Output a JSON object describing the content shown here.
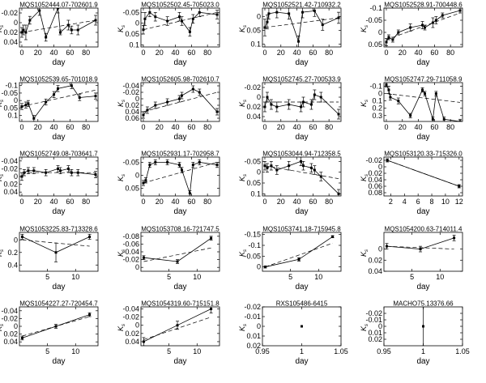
{
  "figure": {
    "background": "#ffffff",
    "line_color": "#000000",
    "default_ylabel": "K",
    "default_ylabel_sub": "s",
    "default_xlabel": "day"
  },
  "chart_data": [
    {
      "type": "line",
      "title": "MQS1052444.07-702601.9",
      "ylim": [
        -0.03,
        0.05
      ],
      "xlim": [
        -3,
        95
      ],
      "yticks": [
        "-0.02",
        "0",
        "0.02",
        "0.04"
      ],
      "ytick_values": [
        -0.02,
        0,
        0.02,
        0.04
      ],
      "xticks": [
        "0",
        "20",
        "40",
        "60",
        "80"
      ],
      "xtick_values": [
        0,
        20,
        40,
        60,
        80
      ],
      "x": [
        0,
        2,
        5,
        10,
        22,
        30,
        45,
        48,
        58,
        62,
        70,
        92
      ],
      "y": [
        0.02,
        0.015,
        0.02,
        -0.005,
        -0.025,
        0.03,
        -0.03,
        0.02,
        0.005,
        0.015,
        0.015,
        -0.005
      ],
      "errors": [
        0.01,
        0.01,
        0.015,
        0.008,
        0.01,
        0.008,
        0.01,
        0.005,
        0.01,
        0.008,
        0.01,
        0.01
      ],
      "trend": [
        [
          0,
          0.02
        ],
        [
          92,
          -0.005
        ]
      ]
    },
    {
      "type": "line",
      "title": "MQS1052502.45-705023.0",
      "ylim": [
        -0.07,
        0.11
      ],
      "xlim": [
        -3,
        95
      ],
      "yticks": [
        "-0.05",
        "0",
        "0.05",
        "0.1"
      ],
      "ytick_values": [
        -0.05,
        0,
        0.05,
        0.1
      ],
      "xticks": [
        "0",
        "20",
        "40",
        "60",
        "80"
      ],
      "xtick_values": [
        0,
        20,
        40,
        60,
        80
      ],
      "x": [
        0,
        2,
        8,
        15,
        30,
        45,
        48,
        58,
        62,
        70,
        92
      ],
      "y": [
        0.03,
        -0.02,
        -0.05,
        -0.03,
        -0.01,
        -0.03,
        -0.01,
        0.04,
        -0.02,
        -0.05,
        -0.04
      ],
      "errors": [
        0.02,
        0.03,
        0.02,
        0.02,
        0.02,
        0.02,
        0.02,
        0.02,
        0.02,
        0.02,
        0.02
      ],
      "trend": [
        [
          0,
          0.03
        ],
        [
          92,
          -0.05
        ]
      ]
    },
    {
      "type": "line",
      "title": "MQS1052521.42-710932.2",
      "ylim": [
        -0.03,
        0.11
      ],
      "xlim": [
        -3,
        95
      ],
      "yticks": [
        "0",
        "0.05",
        "0.1"
      ],
      "ytick_values": [
        0,
        0.05,
        0.1
      ],
      "xticks": [
        "0",
        "20",
        "40",
        "60",
        "80"
      ],
      "xtick_values": [
        0,
        20,
        40,
        60,
        80
      ],
      "x": [
        0,
        3,
        5,
        15,
        30,
        42,
        47,
        62,
        72,
        92
      ],
      "y": [
        0.04,
        0.02,
        -0.01,
        -0.015,
        -0.01,
        0.09,
        -0.015,
        -0.02,
        0.03,
        0.005
      ],
      "errors": [
        0.03,
        0.025,
        0.02,
        0.02,
        0.02,
        0.02,
        0.02,
        0.02,
        0.02,
        0.02
      ],
      "trend": [
        [
          0,
          0.04
        ],
        [
          92,
          0.005
        ]
      ]
    },
    {
      "type": "line",
      "title": "MQS1052528.91-700448.6",
      "ylim": [
        -0.1,
        0.06
      ],
      "xlim": [
        -3,
        95
      ],
      "yticks": [
        "-0.1",
        "-0.05",
        "0",
        "0.05"
      ],
      "ytick_values": [
        -0.1,
        -0.05,
        0,
        0.05
      ],
      "xticks": [
        "0",
        "20",
        "40",
        "60",
        "80"
      ],
      "xtick_values": [
        0,
        20,
        40,
        60,
        80
      ],
      "x": [
        0,
        3,
        8,
        15,
        30,
        45,
        48,
        58,
        62,
        70,
        92
      ],
      "y": [
        0.04,
        0.02,
        0.03,
        0.0,
        -0.02,
        -0.03,
        -0.02,
        -0.04,
        -0.05,
        -0.07,
        -0.09
      ],
      "errors": [
        0.015,
        0.01,
        0.01,
        0.01,
        0.015,
        0.015,
        0.01,
        0.02,
        0.015,
        0.01,
        0.01
      ],
      "trend": [
        [
          0,
          0.03
        ],
        [
          92,
          -0.08
        ]
      ]
    },
    {
      "type": "line",
      "title": "MQS1052539.65-701018.9",
      "ylim": [
        -0.12,
        0.14
      ],
      "xlim": [
        -3,
        95
      ],
      "yticks": [
        "-0.1",
        "-0.05",
        "0",
        "0.05",
        "0.1"
      ],
      "ytick_values": [
        -0.1,
        -0.05,
        0,
        0.05,
        0.1
      ],
      "xticks": [
        "0",
        "20",
        "40",
        "60",
        "80"
      ],
      "xtick_values": [
        0,
        20,
        40,
        60,
        80
      ],
      "x": [
        0,
        5,
        8,
        15,
        30,
        40,
        45,
        62,
        72,
        92
      ],
      "y": [
        0.04,
        0.03,
        0.02,
        0.12,
        0.01,
        -0.04,
        -0.08,
        -0.1,
        -0.02,
        -0.03
      ],
      "errors": [
        0.02,
        0.02,
        0.02,
        0.02,
        0.02,
        0.02,
        0.02,
        0.02,
        0.02,
        0.02
      ],
      "trend": [
        [
          0,
          0.04
        ],
        [
          92,
          -0.07
        ]
      ]
    },
    {
      "type": "line",
      "title": "MQS1052605.98-702610.7",
      "ylim": [
        -0.05,
        0.07
      ],
      "xlim": [
        -3,
        95
      ],
      "yticks": [
        "-0.04",
        "-0.02",
        "0",
        "0.02",
        "0.04",
        "0.06"
      ],
      "ytick_values": [
        -0.04,
        -0.02,
        0,
        0.02,
        0.04,
        0.06
      ],
      "xticks": [
        "0",
        "20",
        "40",
        "60",
        "80"
      ],
      "xtick_values": [
        0,
        20,
        40,
        60,
        80
      ],
      "x": [
        0,
        5,
        15,
        30,
        45,
        48,
        62,
        70,
        92
      ],
      "y": [
        0.05,
        0.035,
        0.02,
        0.01,
        0.0,
        -0.01,
        -0.03,
        -0.02,
        0.04
      ],
      "errors": [
        0.01,
        0.01,
        0.01,
        0.01,
        0.01,
        0.01,
        0.01,
        0.01,
        0.01
      ],
      "trend": [
        [
          0,
          0.04
        ],
        [
          92,
          -0.02
        ]
      ]
    },
    {
      "type": "line",
      "title": "MQS1052745.27-700533.9",
      "ylim": [
        -0.03,
        0.05
      ],
      "xlim": [
        -3,
        95
      ],
      "yticks": [
        "-0.02",
        "0",
        "0.02",
        "0.04"
      ],
      "ytick_values": [
        -0.02,
        0,
        0.02,
        0.04
      ],
      "xticks": [
        "0",
        "20",
        "40",
        "60",
        "80"
      ],
      "xtick_values": [
        0,
        20,
        40,
        60,
        80
      ],
      "x": [
        0,
        3,
        8,
        15,
        30,
        45,
        48,
        58,
        62,
        70,
        92
      ],
      "y": [
        0.02,
        0.0,
        0.015,
        0.02,
        0.015,
        0.02,
        0.01,
        0.015,
        -0.005,
        0.0,
        0.035
      ],
      "errors": [
        0.01,
        0.01,
        0.01,
        0.01,
        0.01,
        0.01,
        0.01,
        0.01,
        0.01,
        0.01,
        0.01
      ],
      "trend": [
        [
          0,
          0.01
        ],
        [
          92,
          0.01
        ]
      ]
    },
    {
      "type": "line",
      "title": "MQS1052747.29-711058.9",
      "ylim": [
        -0.15,
        0.38
      ],
      "xlim": [
        -3,
        95
      ],
      "yticks": [
        "-0.1",
        "0",
        "0.1",
        "0.2",
        "0.3"
      ],
      "ytick_values": [
        -0.1,
        0,
        0.1,
        0.2,
        0.3
      ],
      "xticks": [
        "0",
        "20",
        "40",
        "60",
        "80"
      ],
      "xtick_values": [
        0,
        20,
        40,
        60,
        80
      ],
      "x": [
        0,
        3,
        5,
        15,
        30,
        45,
        48,
        58,
        62,
        72,
        92
      ],
      "y": [
        -0.12,
        -0.05,
        0.05,
        0.1,
        0.3,
        -0.05,
        0.0,
        0.35,
        0.0,
        0.35,
        0.38
      ],
      "errors": [
        0.03,
        0.05,
        0.04,
        0.04,
        0.03,
        0.03,
        0.03,
        0.03,
        0.03,
        0.03,
        0.03
      ],
      "trend": [
        [
          0,
          0.0
        ],
        [
          92,
          0.12
        ]
      ]
    },
    {
      "type": "line",
      "title": "MQS1052749.08-703641.7",
      "ylim": [
        -0.05,
        0.05
      ],
      "xlim": [
        -3,
        95
      ],
      "yticks": [
        "-0.04",
        "-0.02",
        "0",
        "0.02",
        "0.04"
      ],
      "ytick_values": [
        -0.04,
        -0.02,
        0,
        0.02,
        0.04
      ],
      "xticks": [
        "0",
        "20",
        "40",
        "60",
        "80"
      ],
      "xtick_values": [
        0,
        20,
        40,
        60,
        80
      ],
      "x": [
        0,
        3,
        8,
        15,
        30,
        45,
        48,
        58,
        62,
        70,
        92
      ],
      "y": [
        0.0,
        -0.01,
        -0.015,
        -0.015,
        -0.01,
        -0.02,
        -0.015,
        -0.02,
        -0.01,
        -0.01,
        -0.005
      ],
      "errors": [
        0.01,
        0.008,
        0.008,
        0.008,
        0.008,
        0.008,
        0.008,
        0.008,
        0.008,
        0.008,
        0.008
      ],
      "trend": [
        [
          0,
          -0.01
        ],
        [
          92,
          -0.01
        ]
      ]
    },
    {
      "type": "line",
      "title": "MQS1052931.17-702958.7",
      "ylim": [
        -0.07,
        0.08
      ],
      "xlim": [
        -3,
        95
      ],
      "yticks": [
        "-0.05",
        "0",
        "0.05"
      ],
      "ytick_values": [
        -0.05,
        0,
        0.05
      ],
      "xticks": [
        "0",
        "20",
        "40",
        "60",
        "80"
      ],
      "xtick_values": [
        0,
        20,
        40,
        60,
        80
      ],
      "x": [
        0,
        3,
        8,
        15,
        30,
        45,
        48,
        58,
        62,
        70,
        92
      ],
      "y": [
        0.03,
        0.02,
        -0.04,
        -0.05,
        -0.05,
        -0.04,
        -0.02,
        0.07,
        -0.04,
        -0.05,
        -0.04
      ],
      "errors": [
        0.01,
        0.01,
        0.01,
        0.01,
        0.01,
        0.01,
        0.01,
        0.01,
        0.01,
        0.01,
        0.01
      ],
      "trend": [
        [
          0,
          0.03
        ],
        [
          92,
          -0.05
        ]
      ]
    },
    {
      "type": "line",
      "title": "MQS1053044.94-712358.5",
      "ylim": [
        -0.07,
        0.11
      ],
      "xlim": [
        -3,
        95
      ],
      "yticks": [
        "-0.05",
        "0",
        "0.05",
        "0.1"
      ],
      "ytick_values": [
        -0.05,
        0,
        0.05,
        0.1
      ],
      "xticks": [
        "0",
        "20",
        "40",
        "60",
        "80"
      ],
      "xtick_values": [
        0,
        20,
        40,
        60,
        80
      ],
      "x": [
        0,
        3,
        8,
        15,
        30,
        45,
        48,
        58,
        62,
        70,
        92
      ],
      "y": [
        -0.03,
        -0.02,
        -0.03,
        -0.01,
        -0.03,
        -0.05,
        -0.03,
        -0.02,
        -0.01,
        0.02,
        0.1
      ],
      "errors": [
        0.02,
        0.02,
        0.02,
        0.02,
        0.02,
        0.02,
        0.02,
        0.02,
        0.02,
        0.02,
        0.02
      ],
      "trend": [
        [
          0,
          -0.03
        ],
        [
          92,
          0.03
        ]
      ]
    },
    {
      "type": "line",
      "title": "MQS1053120.33-715326.0",
      "ylim": [
        -0.03,
        0.09
      ],
      "xlim": [
        1,
        12.5
      ],
      "yticks": [
        "-0.02",
        "0",
        "0.02",
        "0.04",
        "0.06",
        "0.08"
      ],
      "ytick_values": [
        -0.02,
        0,
        0.02,
        0.04,
        0.06,
        0.08
      ],
      "xticks": [
        "2",
        "4",
        "6",
        "8",
        "10",
        "12"
      ],
      "xtick_values": [
        2,
        4,
        6,
        8,
        10,
        12
      ],
      "x": [
        1.5,
        12
      ],
      "y": [
        -0.02,
        0.06
      ],
      "errors": [
        0.005,
        0.005
      ],
      "trend": [
        [
          1.5,
          -0.02
        ],
        [
          12,
          0.06
        ]
      ]
    },
    {
      "type": "line",
      "title": "MQS1053225.83-713328.6",
      "ylim": [
        -0.12,
        0.5
      ],
      "xlim": [
        0,
        14
      ],
      "yticks": [
        "0",
        "0.2",
        "0.4"
      ],
      "ytick_values": [
        0,
        0.2,
        0.4
      ],
      "xticks": [
        "5",
        "10"
      ],
      "xtick_values": [
        5,
        10
      ],
      "x": [
        0.5,
        6.5,
        12.5
      ],
      "y": [
        -0.05,
        0.2,
        -0.05
      ],
      "errors": [
        0.04,
        0.15,
        0.04
      ],
      "trend": [
        [
          0.5,
          0.0
        ],
        [
          12.5,
          0.1
        ]
      ]
    },
    {
      "type": "line",
      "title": "MQS1053708.16-721747.5",
      "ylim": [
        -0.09,
        0.01
      ],
      "xlim": [
        0,
        14
      ],
      "yticks": [
        "-0.08",
        "-0.06",
        "-0.04",
        "-0.02",
        "0"
      ],
      "ytick_values": [
        -0.08,
        -0.06,
        -0.04,
        -0.02,
        0
      ],
      "xticks": [
        "5",
        "10"
      ],
      "xtick_values": [
        5,
        10
      ],
      "x": [
        0.5,
        6.5,
        12.5
      ],
      "y": [
        -0.025,
        -0.015,
        -0.075
      ],
      "errors": [
        0.005,
        0.005,
        0.005
      ],
      "trend": [
        [
          0.5,
          -0.015
        ],
        [
          12.5,
          -0.05
        ]
      ]
    },
    {
      "type": "line",
      "title": "MQS1053741.18-715945.8",
      "ylim": [
        -0.16,
        0.02
      ],
      "xlim": [
        0,
        14
      ],
      "yticks": [
        "-0.15",
        "-0.1",
        "-0.05",
        "0"
      ],
      "ytick_values": [
        -0.15,
        -0.1,
        -0.05,
        0
      ],
      "xticks": [
        "5",
        "10"
      ],
      "xtick_values": [
        5,
        10
      ],
      "x": [
        0.5,
        6.5,
        12.5
      ],
      "y": [
        0.0,
        -0.035,
        -0.14
      ],
      "errors": [
        0.005,
        0.008,
        0.005
      ],
      "trend": [
        [
          0.5,
          0.0
        ],
        [
          12.5,
          -0.11
        ]
      ]
    },
    {
      "type": "line",
      "title": "MQS1054200.63-714011.4",
      "ylim": [
        -0.03,
        0.04
      ],
      "xlim": [
        0,
        14
      ],
      "yticks": [
        "0",
        "0.02",
        "0.04"
      ],
      "ytick_values": [
        0,
        0.02,
        0.04
      ],
      "xticks": [
        "5",
        "10"
      ],
      "xtick_values": [
        5,
        10
      ],
      "x": [
        0.5,
        6.5,
        12.5
      ],
      "y": [
        -0.005,
        0.0,
        -0.02
      ],
      "errors": [
        0.005,
        0.005,
        0.005
      ],
      "trend": [
        [
          0.5,
          -0.005
        ],
        [
          12.5,
          0.0
        ]
      ]
    },
    {
      "type": "line",
      "title": "MQS1054227.27-720454.7",
      "ylim": [
        -0.05,
        0.05
      ],
      "xlim": [
        0,
        14
      ],
      "yticks": [
        "-0.04",
        "-0.02",
        "0",
        "0.02",
        "0.04"
      ],
      "ytick_values": [
        -0.04,
        -0.02,
        0,
        0.02,
        0.04
      ],
      "xticks": [
        "5",
        "10"
      ],
      "xtick_values": [
        5,
        10
      ],
      "x": [
        0.5,
        6.5,
        12.5
      ],
      "y": [
        0.03,
        0.0,
        -0.03
      ],
      "errors": [
        0.005,
        0.005,
        0.005
      ],
      "trend": [
        [
          0.5,
          0.025
        ],
        [
          12.5,
          -0.025
        ]
      ]
    },
    {
      "type": "line",
      "title": "MQS1054319.60-715151.8",
      "ylim": [
        -0.045,
        0.05
      ],
      "xlim": [
        0,
        14
      ],
      "yticks": [
        "-0.04",
        "-0.02",
        "0",
        "0.02",
        "0.04"
      ],
      "ytick_values": [
        -0.04,
        -0.02,
        0,
        0.02,
        0.04
      ],
      "xticks": [
        "5",
        "10"
      ],
      "xtick_values": [
        5,
        10
      ],
      "x": [
        0.5,
        6.5,
        12.5
      ],
      "y": [
        0.04,
        0.0,
        -0.04
      ],
      "errors": [
        0.01,
        0.01,
        0.01
      ],
      "trend": [
        [
          0.5,
          0.035
        ],
        [
          12.5,
          -0.02
        ]
      ]
    },
    {
      "type": "scatter",
      "title": "RXS105486-6415",
      "ylim": [
        -0.02,
        0.02
      ],
      "xlim": [
        0.95,
        1.05
      ],
      "yticks": [
        "-0.02",
        "-0.01",
        "0",
        "0.01",
        "0.02"
      ],
      "ytick_values": [
        -0.02,
        -0.01,
        0,
        0.01,
        0.02
      ],
      "xticks": [
        "0.95",
        "1",
        "1.05"
      ],
      "xtick_values": [
        0.95,
        1,
        1.05
      ],
      "x": [
        1
      ],
      "y": [
        0.0
      ],
      "errors": [
        0
      ],
      "trend": []
    },
    {
      "type": "scatter",
      "title": "MACHO75.13376.66",
      "ylim": [
        -0.03,
        0.03
      ],
      "xlim": [
        0.95,
        1.05
      ],
      "yticks": [
        "-0.02",
        "-0.01",
        "0",
        "0.01",
        "0.02"
      ],
      "ytick_values": [
        -0.02,
        -0.01,
        0,
        0.01,
        0.02
      ],
      "xticks": [
        "0.95",
        "1",
        "1.05"
      ],
      "xtick_values": [
        0.95,
        1,
        1.05
      ],
      "x": [
        1
      ],
      "y": [
        0.0
      ],
      "errors": [
        0.03
      ],
      "trend": []
    }
  ]
}
